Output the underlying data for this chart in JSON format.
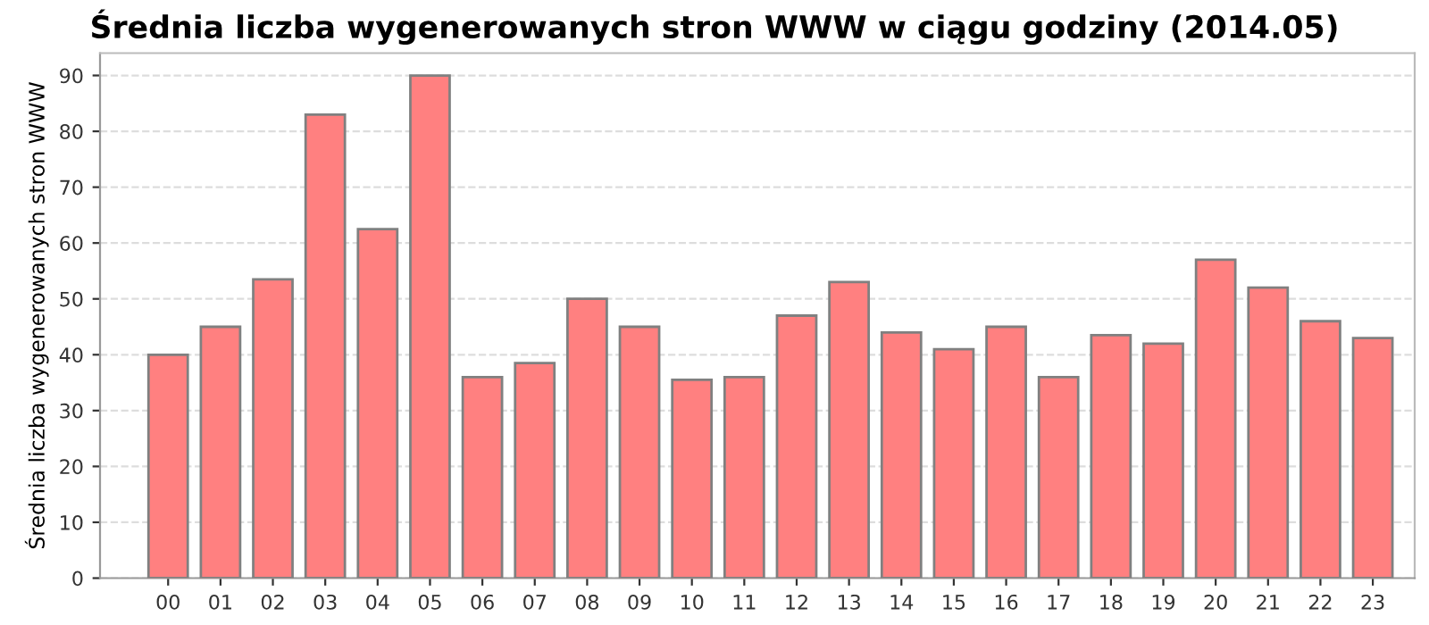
{
  "chart_data": {
    "type": "bar",
    "title": "Średnia liczba wygenerowanych stron WWW w ciągu godziny (2014.05)",
    "ylabel": "Średnia liczba wygenerowanych stron WWW",
    "categories": [
      "00",
      "01",
      "02",
      "03",
      "04",
      "05",
      "06",
      "07",
      "08",
      "09",
      "10",
      "11",
      "12",
      "13",
      "14",
      "15",
      "16",
      "17",
      "18",
      "19",
      "20",
      "21",
      "22",
      "23"
    ],
    "values": [
      40,
      45,
      53.5,
      83,
      62.5,
      90,
      36,
      38.5,
      50,
      45,
      35.5,
      36,
      47,
      53,
      44,
      41,
      45,
      36,
      43.5,
      42,
      57,
      52,
      46,
      43
    ],
    "color": "#ff8080",
    "ylim": [
      0,
      94
    ],
    "yticks": [
      0,
      10,
      20,
      30,
      40,
      50,
      60,
      70,
      80,
      90
    ],
    "grid": "y"
  }
}
